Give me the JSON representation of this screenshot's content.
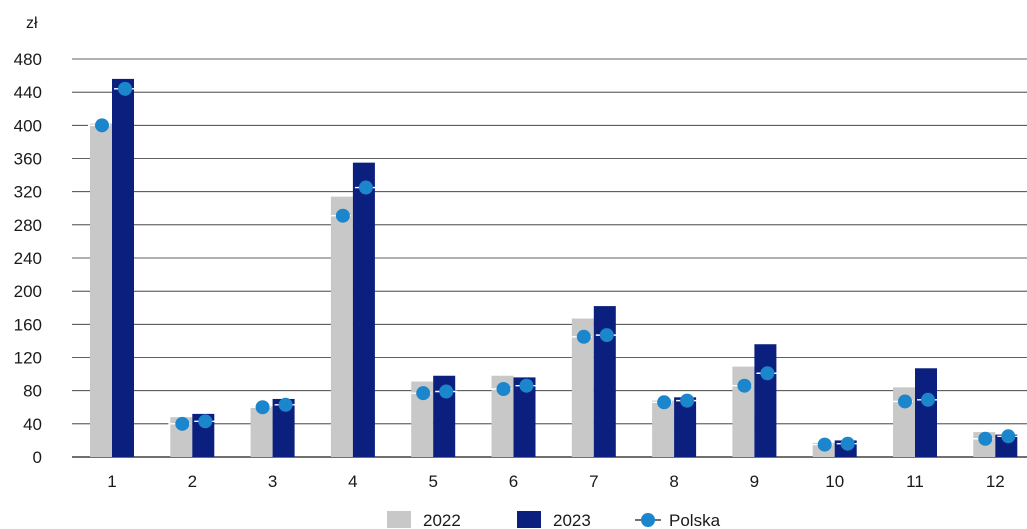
{
  "chart_data": {
    "type": "bar",
    "unit_label": "zł",
    "categories": [
      "1",
      "2",
      "3",
      "4",
      "5",
      "6",
      "7",
      "8",
      "9",
      "10",
      "11",
      "12"
    ],
    "series": [
      {
        "name": "2022",
        "values": [
          402,
          48,
          61,
          314,
          91,
          98,
          167,
          68,
          109,
          17,
          84,
          30
        ],
        "color": "#c8c8c8"
      },
      {
        "name": "2023",
        "values": [
          456,
          52,
          70,
          355,
          98,
          96,
          182,
          72,
          136,
          20,
          107,
          27
        ],
        "color": "#0b1f7e"
      }
    ],
    "markers": {
      "name": "Polska",
      "values_2022": [
        400,
        40,
        60,
        291,
        77,
        82,
        145,
        66,
        86,
        15,
        67,
        22
      ],
      "values_2023": [
        444,
        43,
        63,
        325,
        79,
        86,
        147,
        68,
        101,
        16,
        69,
        25
      ],
      "color": "#1b86cc"
    },
    "ylim": [
      0,
      480
    ],
    "yticks": [
      0,
      40,
      80,
      120,
      160,
      200,
      240,
      280,
      320,
      360,
      400,
      440,
      480
    ],
    "grid": true,
    "legend_position": "bottom-center"
  }
}
